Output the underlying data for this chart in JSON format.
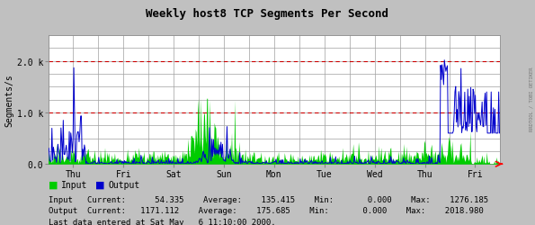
{
  "title": "Weekly host8 TCP Segments Per Second",
  "ylabel": "Segments/s",
  "right_label": "RRDTOOL / TOBI OETIKER",
  "bg_color": "#c0c0c0",
  "plot_bg_color": "#ffffff",
  "grid_color": "#a0a0a0",
  "red_line_color": "#cc0000",
  "input_color": "#00cc00",
  "output_color": "#0000cc",
  "xticklabels": [
    "Thu",
    "Fri",
    "Sat",
    "Sun",
    "Mon",
    "Tue",
    "Wed",
    "Thu",
    "Fri"
  ],
  "xtick_count": 9,
  "yticks": [
    0.0,
    1000.0,
    2000.0
  ],
  "yticklabels": [
    "0.0",
    "1.0 k",
    "2.0 k"
  ],
  "ylim": [
    0,
    2500
  ],
  "num_points": 600,
  "legend_input": "Input",
  "legend_output": "Output",
  "stats_line1": "Input   Current:      54.335    Average:    135.415    Min:       0.000    Max:    1276.185",
  "stats_line2": "Output  Current:   1171.112    Average:    175.685    Min:       0.000    Max:    2018.980",
  "footer": "Last data entered at Sat May   6 11:10:00 2000.",
  "font_family": "monospace"
}
